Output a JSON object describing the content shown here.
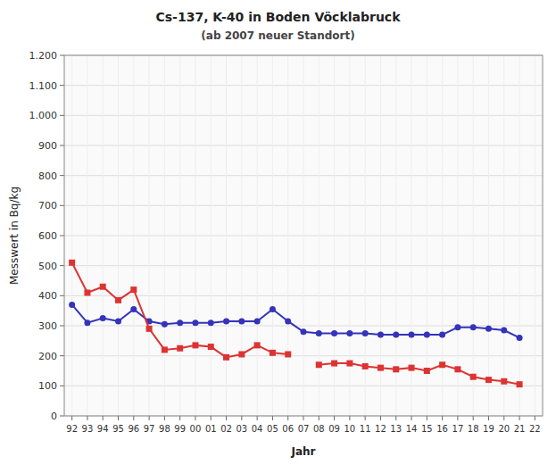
{
  "chart_data": {
    "type": "line",
    "title": "Cs-137, K-40 in Boden Vöcklabruck",
    "subtitle": "(ab 2007 neuer Standort)",
    "xlabel": "Jahr",
    "ylabel": "Messwert in Bq/kg",
    "categories": [
      "92",
      "93",
      "94",
      "95",
      "96",
      "97",
      "98",
      "99",
      "00",
      "01",
      "02",
      "03",
      "04",
      "05",
      "06",
      "07",
      "08",
      "09",
      "10",
      "11",
      "12",
      "13",
      "14",
      "15",
      "16",
      "17",
      "18",
      "19",
      "20",
      "21",
      "22"
    ],
    "series": [
      {
        "color": "#3333bb",
        "marker": "circle",
        "values": [
          370,
          310,
          325,
          315,
          355,
          315,
          305,
          310,
          310,
          310,
          315,
          315,
          315,
          355,
          315,
          280,
          275,
          275,
          275,
          275,
          270,
          270,
          270,
          270,
          270,
          295,
          295,
          290,
          285,
          260,
          null
        ]
      },
      {
        "color": "#dd3333",
        "marker": "square",
        "values": [
          510,
          410,
          430,
          385,
          420,
          290,
          220,
          225,
          235,
          230,
          195,
          205,
          235,
          210,
          205,
          null,
          170,
          175,
          175,
          165,
          160,
          155,
          160,
          150,
          170,
          155,
          130,
          120,
          115,
          105,
          null
        ]
      }
    ],
    "ylim": [
      0,
      1200
    ],
    "yticks": [
      0,
      100,
      200,
      300,
      400,
      500,
      600,
      700,
      800,
      900,
      {
        "value": 1000,
        "label": "1.000"
      },
      {
        "value": 1100,
        "label": "1.100"
      },
      {
        "value": 1200,
        "label": "1.200"
      }
    ],
    "grid": true
  }
}
